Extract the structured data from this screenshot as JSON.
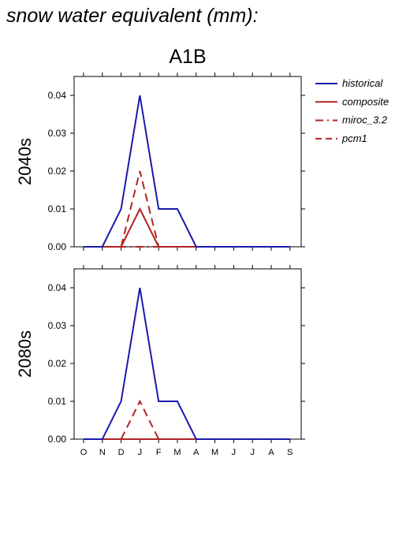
{
  "figure": {
    "title": "snow water equivalent (mm):"
  },
  "chart_data": {
    "type": "line",
    "title": "A1B",
    "x": [
      "O",
      "N",
      "D",
      "J",
      "F",
      "M",
      "A",
      "M",
      "J",
      "J",
      "A",
      "S"
    ],
    "ylim": [
      0,
      0.045
    ],
    "yticks": [
      "0.00",
      "0.01",
      "0.02",
      "0.03",
      "0.04"
    ],
    "grid": false,
    "legend_position": "top-right outside",
    "legend": [
      {
        "name": "historical",
        "color": "#1a1aad",
        "dash": "solid"
      },
      {
        "name": "composite",
        "color": "#b22222",
        "dash": "solid"
      },
      {
        "name": "miroc_3.2",
        "color": "#b22222",
        "dash": "dashdot"
      },
      {
        "name": "pcm1",
        "color": "#b22222",
        "dash": "dashed"
      }
    ],
    "panels": [
      {
        "label": "2040s",
        "series": [
          {
            "name": "historical",
            "values": [
              0,
              0,
              0.01,
              0.04,
              0.01,
              0.01,
              0,
              0,
              0,
              0,
              0,
              0
            ]
          },
          {
            "name": "composite",
            "values": [
              0,
              0,
              0,
              0.01,
              0,
              0,
              0,
              0,
              0,
              0,
              0,
              0
            ]
          },
          {
            "name": "miroc_3.2",
            "values": [
              0,
              0,
              0,
              0,
              0,
              0,
              0,
              0,
              0,
              0,
              0,
              0
            ]
          },
          {
            "name": "pcm1",
            "values": [
              0,
              0,
              0,
              0.02,
              0,
              0,
              0,
              0,
              0,
              0,
              0,
              0
            ]
          }
        ]
      },
      {
        "label": "2080s",
        "series": [
          {
            "name": "historical",
            "values": [
              0,
              0,
              0.01,
              0.04,
              0.01,
              0.01,
              0,
              0,
              0,
              0,
              0,
              0
            ]
          },
          {
            "name": "composite",
            "values": [
              0,
              0,
              0,
              0,
              0,
              0,
              0,
              0,
              0,
              0,
              0,
              0
            ]
          },
          {
            "name": "miroc_3.2",
            "values": [
              0,
              0,
              0,
              0,
              0,
              0,
              0,
              0,
              0,
              0,
              0,
              0
            ]
          },
          {
            "name": "pcm1",
            "values": [
              0,
              0,
              0,
              0.01,
              0,
              0,
              0,
              0,
              0,
              0,
              0,
              0
            ]
          }
        ]
      }
    ]
  }
}
